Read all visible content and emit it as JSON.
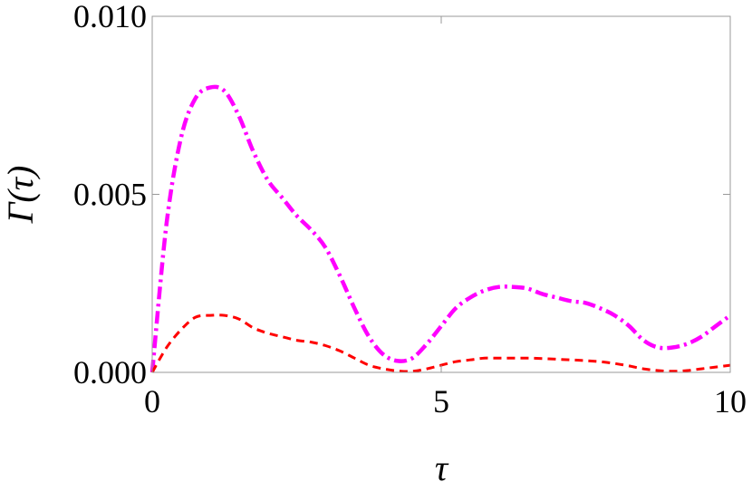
{
  "chart_data": {
    "type": "line",
    "xlabel": "τ",
    "ylabel": "Γ(τ)",
    "xlim": [
      0,
      10
    ],
    "ylim": [
      0,
      0.01
    ],
    "x_ticks": [
      0,
      5,
      10
    ],
    "x_tick_labels": [
      "0",
      "5",
      "10"
    ],
    "y_ticks": [
      0,
      0.005,
      0.01
    ],
    "y_tick_labels": [
      "0.000",
      "0.005",
      "0.010"
    ],
    "grid": false,
    "series": [
      {
        "color": "#ff00ff",
        "style": "dashdot",
        "x": [
          0,
          0.25,
          0.5,
          0.75,
          1.0,
          1.25,
          1.5,
          1.75,
          2.0,
          2.25,
          2.5,
          2.75,
          3.0,
          3.25,
          3.5,
          3.75,
          4.0,
          4.25,
          4.5,
          4.75,
          5.0,
          5.25,
          5.5,
          5.75,
          6.0,
          6.25,
          6.5,
          6.75,
          7.0,
          7.25,
          7.5,
          7.75,
          8.0,
          8.25,
          8.5,
          8.75,
          9.0,
          9.25,
          9.5,
          9.75,
          10.0
        ],
        "y": [
          0.0,
          0.0042,
          0.0066,
          0.0077,
          0.008,
          0.0079,
          0.0072,
          0.0062,
          0.0054,
          0.0049,
          0.0044,
          0.004,
          0.0035,
          0.0027,
          0.0018,
          0.001,
          0.0005,
          0.00032,
          0.0004,
          0.0008,
          0.0013,
          0.0018,
          0.0021,
          0.0023,
          0.0024,
          0.0024,
          0.00235,
          0.0022,
          0.0021,
          0.002,
          0.00195,
          0.0018,
          0.0016,
          0.0013,
          0.0009,
          0.0007,
          0.0007,
          0.0008,
          0.001,
          0.0013,
          0.0016
        ]
      },
      {
        "color": "#ff0000",
        "style": "dashed",
        "x": [
          0,
          0.25,
          0.5,
          0.75,
          1.0,
          1.25,
          1.5,
          1.75,
          2.0,
          2.25,
          2.5,
          2.75,
          3.0,
          3.25,
          3.5,
          3.75,
          4.0,
          4.25,
          4.5,
          4.75,
          5.0,
          5.25,
          5.5,
          5.75,
          6.0,
          6.25,
          6.5,
          6.75,
          7.0,
          7.25,
          7.5,
          7.75,
          8.0,
          8.25,
          8.5,
          8.75,
          9.0,
          9.25,
          9.5,
          9.75,
          10.0
        ],
        "y": [
          0.0,
          0.0007,
          0.0012,
          0.00155,
          0.0016,
          0.0016,
          0.0015,
          0.00125,
          0.0011,
          0.001,
          0.0009,
          0.00085,
          0.00075,
          0.0006,
          0.0004,
          0.0002,
          0.0001,
          4e-05,
          3e-05,
          0.0001,
          0.0002,
          0.0003,
          0.00035,
          0.0004,
          0.0004,
          0.0004,
          0.0004,
          0.00039,
          0.00037,
          0.00035,
          0.00033,
          0.0003,
          0.00025,
          0.00018,
          0.0001,
          5e-05,
          3e-05,
          5e-05,
          0.0001,
          0.00015,
          0.0002
        ]
      }
    ]
  }
}
